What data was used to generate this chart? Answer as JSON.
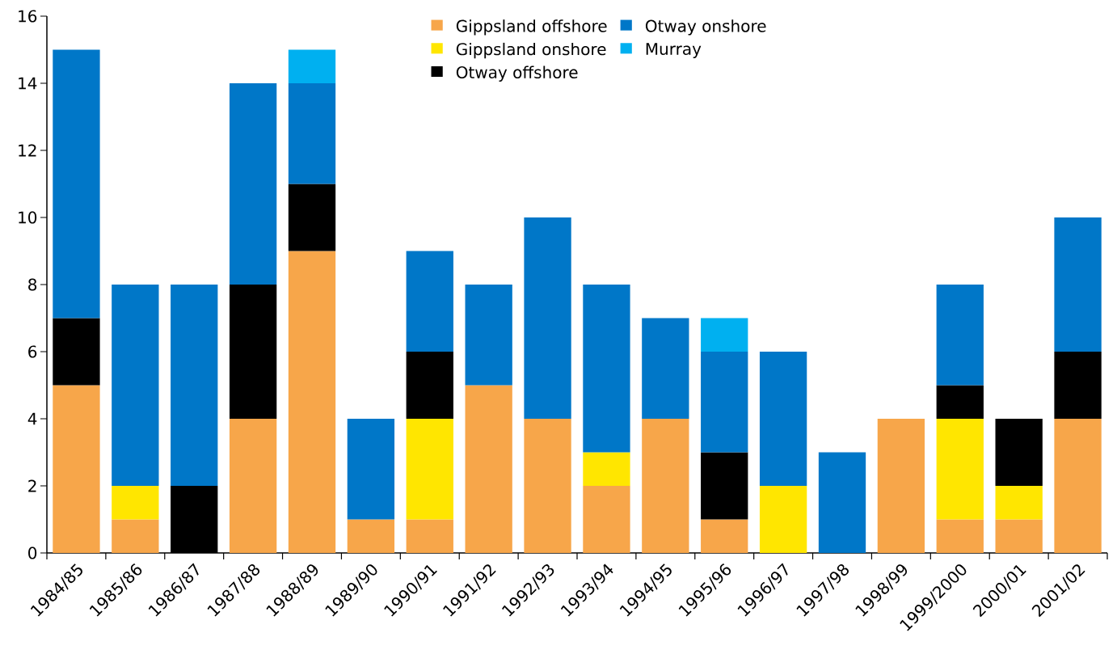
{
  "chart_data": {
    "type": "bar",
    "stacked": true,
    "categories": [
      "1984/85",
      "1985/86",
      "1986/87",
      "1987/88",
      "1988/89",
      "1989/90",
      "1990/91",
      "1991/92",
      "1992/93",
      "1993/94",
      "1994/95",
      "1995/96",
      "1996/97",
      "1997/98",
      "1998/99",
      "1999/2000",
      "2000/01",
      "2001/02"
    ],
    "series": [
      {
        "name": "Gippsland offshore",
        "color": "#f7a64a",
        "values": [
          5,
          1,
          0,
          4,
          9,
          1,
          1,
          5,
          4,
          2,
          4,
          1,
          0,
          0,
          4,
          1,
          1,
          4
        ]
      },
      {
        "name": "Gippsland onshore",
        "color": "#ffe600",
        "values": [
          0,
          1,
          0,
          0,
          0,
          0,
          3,
          0,
          0,
          1,
          0,
          0,
          2,
          0,
          0,
          3,
          1,
          0
        ]
      },
      {
        "name": "Otway offshore",
        "color": "#000000",
        "values": [
          2,
          0,
          2,
          4,
          2,
          0,
          2,
          0,
          0,
          0,
          0,
          2,
          0,
          0,
          0,
          1,
          2,
          2
        ]
      },
      {
        "name": "Otway onshore",
        "color": "#0077c8",
        "values": [
          8,
          6,
          6,
          6,
          3,
          3,
          3,
          3,
          6,
          5,
          3,
          3,
          4,
          3,
          0,
          3,
          0,
          4
        ]
      },
      {
        "name": "Murray",
        "color": "#00b0f0",
        "values": [
          0,
          0,
          0,
          0,
          1,
          0,
          0,
          0,
          0,
          0,
          0,
          1,
          0,
          0,
          0,
          0,
          0,
          0
        ]
      }
    ],
    "ylim": [
      0,
      16
    ],
    "yticks": [
      0,
      2,
      4,
      6,
      8,
      10,
      12,
      14,
      16
    ],
    "grid": false,
    "legend": "top"
  }
}
